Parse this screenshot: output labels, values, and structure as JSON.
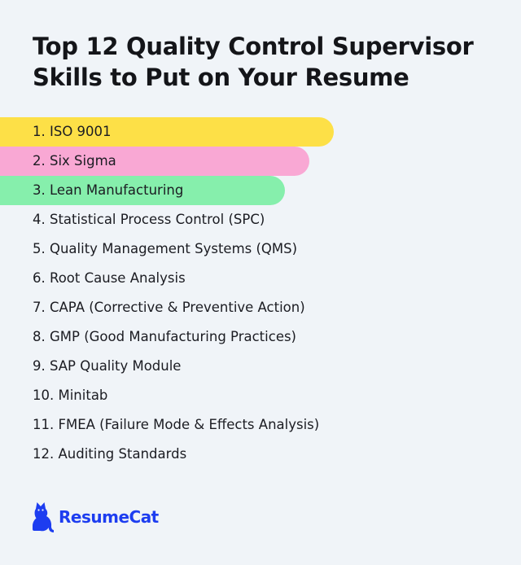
{
  "title": "Top 12 Quality Control Supervisor Skills to Put on Your Resume",
  "skills": [
    "1. ISO 9001",
    "2. Six Sigma",
    "3. Lean Manufacturing",
    "4. Statistical Process Control (SPC)",
    "5. Quality Management Systems (QMS)",
    "6. Root Cause Analysis",
    "7. CAPA (Corrective & Preventive Action)",
    "8. GMP (Good Manufacturing Practices)",
    "9. SAP Quality Module",
    "10. Minitab",
    "11. FMEA (Failure Mode & Effects Analysis)",
    "12. Auditing Standards"
  ],
  "highlight_colors": [
    "#fde047",
    "#f9a8d4",
    "#86efac"
  ],
  "logo": {
    "text": "ResumeCat",
    "icon": "cat-icon",
    "color": "#1d3df0"
  }
}
